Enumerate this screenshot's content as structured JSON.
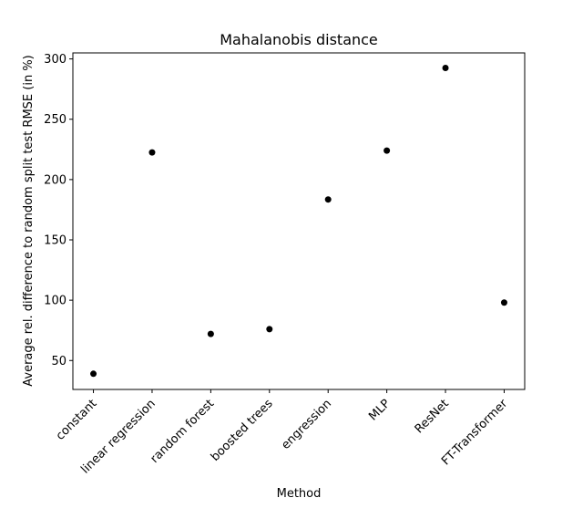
{
  "chart_data": {
    "type": "scatter",
    "title": "Mahalanobis distance",
    "xlabel": "Method",
    "ylabel": "Average rel. difference to random split test RMSE (in %)",
    "categories": [
      "constant",
      "linear regression",
      "random forest",
      "boosted trees",
      "engression",
      "MLP",
      "ResNet",
      "FT-Transformer"
    ],
    "values": [
      39,
      222.5,
      72,
      76,
      183.5,
      224,
      292.5,
      98
    ],
    "yticks": [
      50,
      100,
      150,
      200,
      250,
      300
    ],
    "ylim": [
      26,
      305
    ],
    "grid": false,
    "marker_color": "#000000"
  }
}
